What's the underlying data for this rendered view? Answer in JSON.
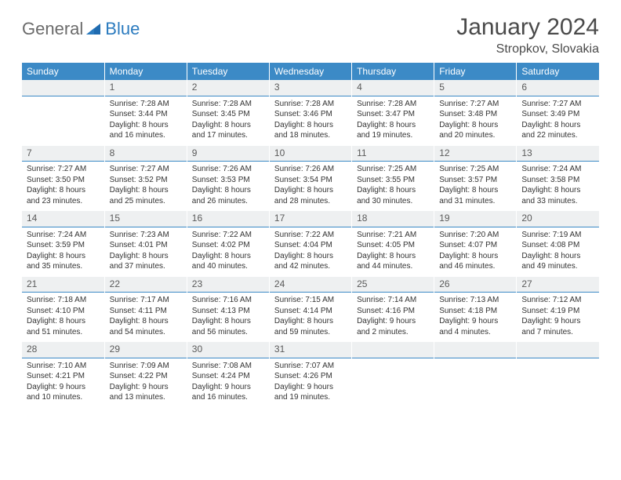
{
  "brand": {
    "text1": "General",
    "text2": "Blue"
  },
  "title": "January 2024",
  "location": "Stropkov, Slovakia",
  "colors": {
    "header_bg": "#3c8ac6",
    "header_text": "#ffffff",
    "daynum_bg": "#eef0f1",
    "daynum_border": "#3c8ac6",
    "body_text": "#333333",
    "title_text": "#4a4a4a",
    "logo_gray": "#6b6b6b",
    "logo_blue": "#2b7bbf"
  },
  "weekdays": [
    "Sunday",
    "Monday",
    "Tuesday",
    "Wednesday",
    "Thursday",
    "Friday",
    "Saturday"
  ],
  "weeks": [
    [
      null,
      {
        "n": "1",
        "sr": "7:28 AM",
        "ss": "3:44 PM",
        "dl": "8 hours and 16 minutes."
      },
      {
        "n": "2",
        "sr": "7:28 AM",
        "ss": "3:45 PM",
        "dl": "8 hours and 17 minutes."
      },
      {
        "n": "3",
        "sr": "7:28 AM",
        "ss": "3:46 PM",
        "dl": "8 hours and 18 minutes."
      },
      {
        "n": "4",
        "sr": "7:28 AM",
        "ss": "3:47 PM",
        "dl": "8 hours and 19 minutes."
      },
      {
        "n": "5",
        "sr": "7:27 AM",
        "ss": "3:48 PM",
        "dl": "8 hours and 20 minutes."
      },
      {
        "n": "6",
        "sr": "7:27 AM",
        "ss": "3:49 PM",
        "dl": "8 hours and 22 minutes."
      }
    ],
    [
      {
        "n": "7",
        "sr": "7:27 AM",
        "ss": "3:50 PM",
        "dl": "8 hours and 23 minutes."
      },
      {
        "n": "8",
        "sr": "7:27 AM",
        "ss": "3:52 PM",
        "dl": "8 hours and 25 minutes."
      },
      {
        "n": "9",
        "sr": "7:26 AM",
        "ss": "3:53 PM",
        "dl": "8 hours and 26 minutes."
      },
      {
        "n": "10",
        "sr": "7:26 AM",
        "ss": "3:54 PM",
        "dl": "8 hours and 28 minutes."
      },
      {
        "n": "11",
        "sr": "7:25 AM",
        "ss": "3:55 PM",
        "dl": "8 hours and 30 minutes."
      },
      {
        "n": "12",
        "sr": "7:25 AM",
        "ss": "3:57 PM",
        "dl": "8 hours and 31 minutes."
      },
      {
        "n": "13",
        "sr": "7:24 AM",
        "ss": "3:58 PM",
        "dl": "8 hours and 33 minutes."
      }
    ],
    [
      {
        "n": "14",
        "sr": "7:24 AM",
        "ss": "3:59 PM",
        "dl": "8 hours and 35 minutes."
      },
      {
        "n": "15",
        "sr": "7:23 AM",
        "ss": "4:01 PM",
        "dl": "8 hours and 37 minutes."
      },
      {
        "n": "16",
        "sr": "7:22 AM",
        "ss": "4:02 PM",
        "dl": "8 hours and 40 minutes."
      },
      {
        "n": "17",
        "sr": "7:22 AM",
        "ss": "4:04 PM",
        "dl": "8 hours and 42 minutes."
      },
      {
        "n": "18",
        "sr": "7:21 AM",
        "ss": "4:05 PM",
        "dl": "8 hours and 44 minutes."
      },
      {
        "n": "19",
        "sr": "7:20 AM",
        "ss": "4:07 PM",
        "dl": "8 hours and 46 minutes."
      },
      {
        "n": "20",
        "sr": "7:19 AM",
        "ss": "4:08 PM",
        "dl": "8 hours and 49 minutes."
      }
    ],
    [
      {
        "n": "21",
        "sr": "7:18 AM",
        "ss": "4:10 PM",
        "dl": "8 hours and 51 minutes."
      },
      {
        "n": "22",
        "sr": "7:17 AM",
        "ss": "4:11 PM",
        "dl": "8 hours and 54 minutes."
      },
      {
        "n": "23",
        "sr": "7:16 AM",
        "ss": "4:13 PM",
        "dl": "8 hours and 56 minutes."
      },
      {
        "n": "24",
        "sr": "7:15 AM",
        "ss": "4:14 PM",
        "dl": "8 hours and 59 minutes."
      },
      {
        "n": "25",
        "sr": "7:14 AM",
        "ss": "4:16 PM",
        "dl": "9 hours and 2 minutes."
      },
      {
        "n": "26",
        "sr": "7:13 AM",
        "ss": "4:18 PM",
        "dl": "9 hours and 4 minutes."
      },
      {
        "n": "27",
        "sr": "7:12 AM",
        "ss": "4:19 PM",
        "dl": "9 hours and 7 minutes."
      }
    ],
    [
      {
        "n": "28",
        "sr": "7:10 AM",
        "ss": "4:21 PM",
        "dl": "9 hours and 10 minutes."
      },
      {
        "n": "29",
        "sr": "7:09 AM",
        "ss": "4:22 PM",
        "dl": "9 hours and 13 minutes."
      },
      {
        "n": "30",
        "sr": "7:08 AM",
        "ss": "4:24 PM",
        "dl": "9 hours and 16 minutes."
      },
      {
        "n": "31",
        "sr": "7:07 AM",
        "ss": "4:26 PM",
        "dl": "9 hours and 19 minutes."
      },
      null,
      null,
      null
    ]
  ],
  "labels": {
    "sunrise": "Sunrise:",
    "sunset": "Sunset:",
    "daylight": "Daylight:"
  }
}
